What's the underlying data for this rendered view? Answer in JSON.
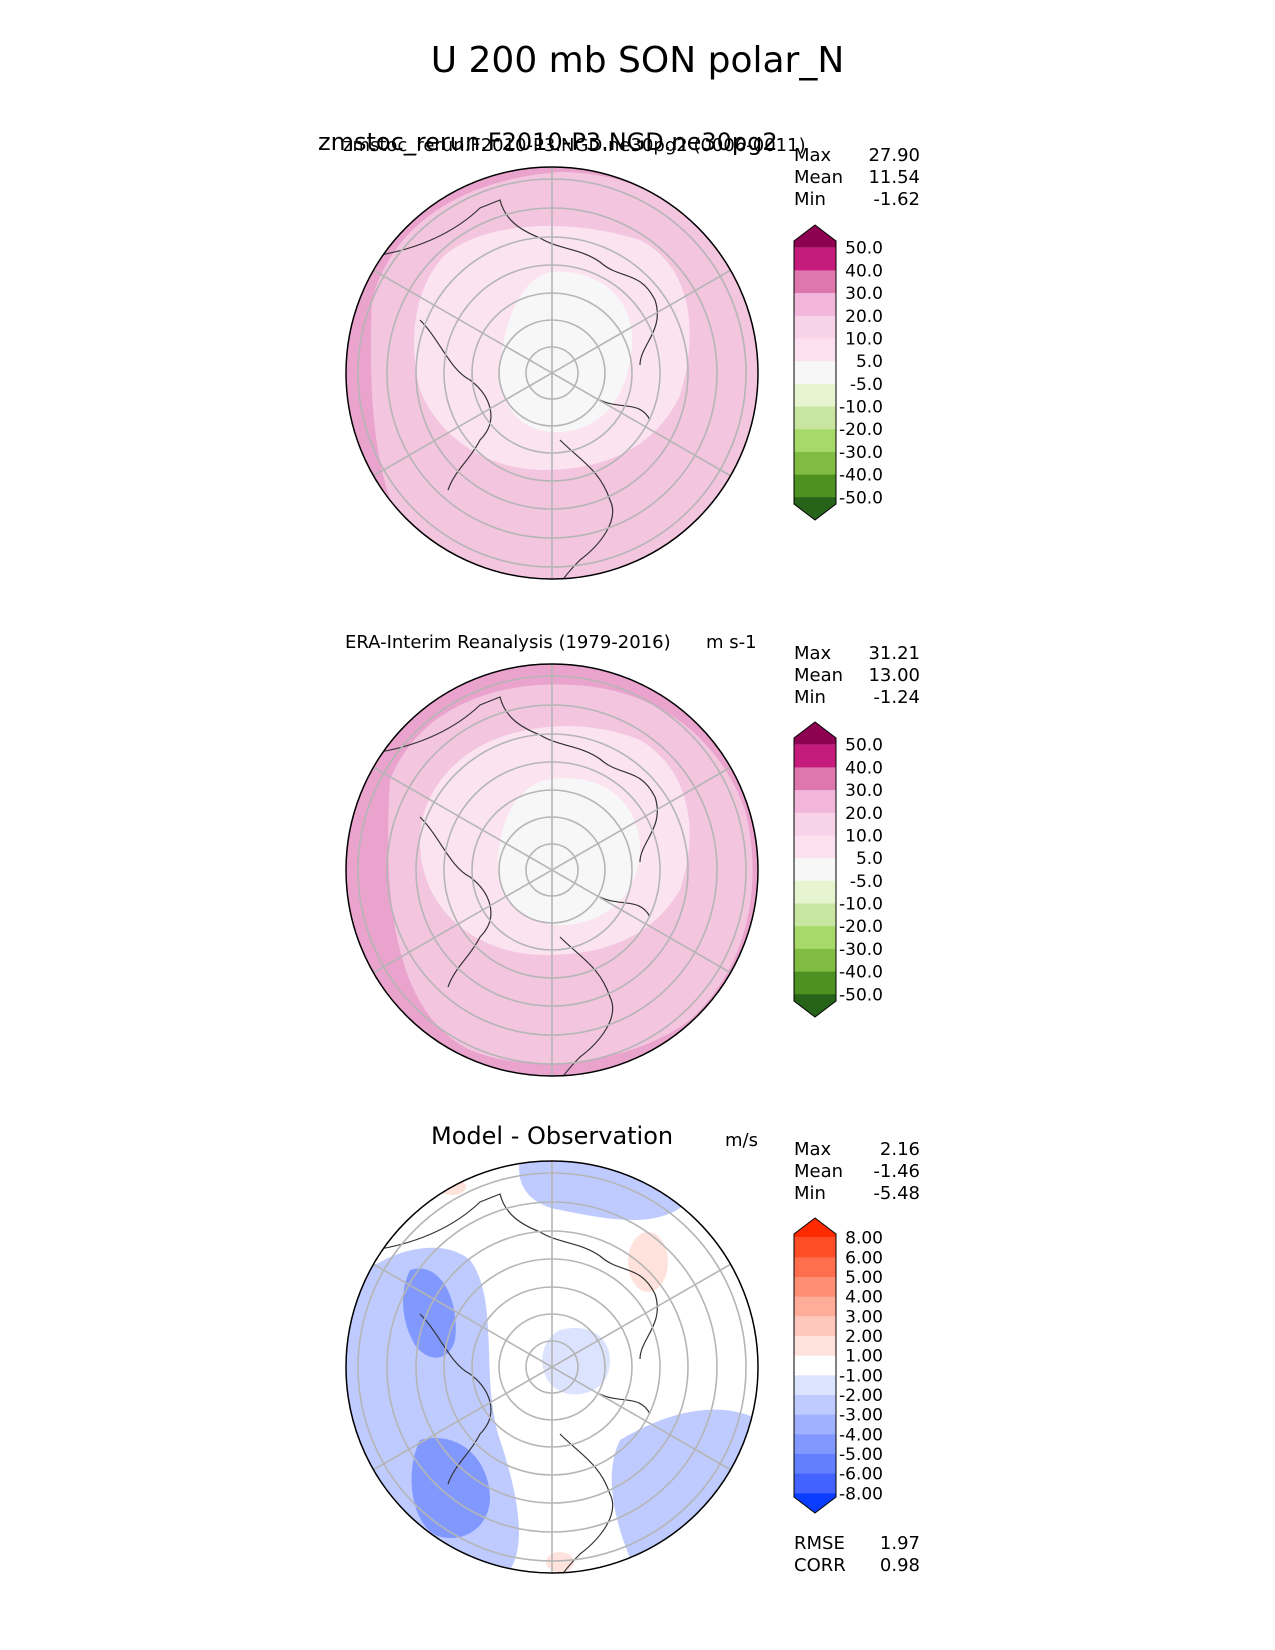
{
  "figure_title": "U 200 mb SON polar_N",
  "panels": [
    {
      "title_overlap_big": "zmstoc_rerun.F2010-P3.NGD.ne30pg2",
      "title_overlap_small": "zmstoc_rerun.F2010-P3.NGD.ne30pg2 (0006-0011)",
      "units": "",
      "stats": [
        {
          "label": "Max",
          "value": "27.90"
        },
        {
          "label": "Mean",
          "value": "11.54"
        },
        {
          "label": "Min",
          "value": "-1.62"
        }
      ]
    },
    {
      "title": "ERA-Interim Reanalysis (1979-2016)",
      "units": "m s-1",
      "stats": [
        {
          "label": "Max",
          "value": "31.21"
        },
        {
          "label": "Mean",
          "value": "13.00"
        },
        {
          "label": "Min",
          "value": "-1.24"
        }
      ]
    },
    {
      "title": "Model - Observation",
      "units": "m/s",
      "stats": [
        {
          "label": "Max",
          "value": "2.16"
        },
        {
          "label": "Mean",
          "value": "-1.46"
        },
        {
          "label": "Min",
          "value": "-5.48"
        }
      ],
      "metrics": [
        {
          "label": "RMSE",
          "value": "1.97"
        },
        {
          "label": "CORR",
          "value": "0.98"
        }
      ]
    }
  ],
  "chart_data": [
    {
      "type": "heatmap",
      "projection": "north polar stereographic",
      "colorbar": {
        "levels": [
          "50.0",
          "40.0",
          "30.0",
          "20.0",
          "10.0",
          "5.0",
          "-5.0",
          "-10.0",
          "-20.0",
          "-30.0",
          "-40.0",
          "-50.0"
        ],
        "colors": [
          "#8e0152",
          "#c51b7d",
          "#de77ae",
          "#f1b6da",
          "#f7d2e8",
          "#fde0ef",
          "#f7f7f7",
          "#e6f5d0",
          "#c8e6a0",
          "#a6d96a",
          "#7fbc41",
          "#4d9221",
          "#276419"
        ],
        "extend": "both"
      }
    },
    {
      "type": "heatmap",
      "projection": "north polar stereographic",
      "colorbar": {
        "levels": [
          "50.0",
          "40.0",
          "30.0",
          "20.0",
          "10.0",
          "5.0",
          "-5.0",
          "-10.0",
          "-20.0",
          "-30.0",
          "-40.0",
          "-50.0"
        ],
        "colors": [
          "#8e0152",
          "#c51b7d",
          "#de77ae",
          "#f1b6da",
          "#f7d2e8",
          "#fde0ef",
          "#f7f7f7",
          "#e6f5d0",
          "#c8e6a0",
          "#a6d96a",
          "#7fbc41",
          "#4d9221",
          "#276419"
        ],
        "extend": "both"
      }
    },
    {
      "type": "heatmap",
      "projection": "north polar stereographic",
      "colorbar": {
        "levels": [
          "8.00",
          "6.00",
          "5.00",
          "4.00",
          "3.00",
          "2.00",
          "1.00",
          "-1.00",
          "-2.00",
          "-3.00",
          "-4.00",
          "-5.00",
          "-6.00",
          "-8.00"
        ],
        "colors": [
          "#ff2a00",
          "#ff4d26",
          "#ff6e4d",
          "#ff8f73",
          "#ffad99",
          "#ffc8bd",
          "#ffe2dc",
          "#ffffff",
          "#dce3ff",
          "#bfcbff",
          "#a0b1ff",
          "#8199ff",
          "#627fff",
          "#4263ff",
          "#0a3dff"
        ],
        "extend": "both"
      }
    }
  ]
}
